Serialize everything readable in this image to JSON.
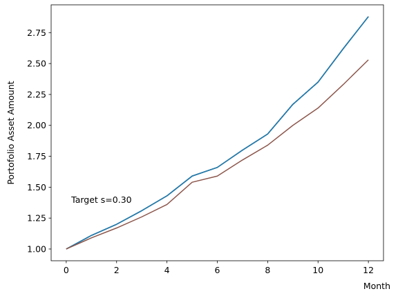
{
  "chart_data": {
    "type": "line",
    "title": "",
    "xlabel": "Month",
    "ylabel": "Portofolio Asset Amount",
    "xlim": [
      -0.6,
      12.6
    ],
    "ylim": [
      0.905,
      2.975
    ],
    "xticks": [
      0,
      2,
      4,
      6,
      8,
      10,
      12
    ],
    "xtick_labels": [
      "0",
      "2",
      "4",
      "6",
      "8",
      "10",
      "12"
    ],
    "yticks": [
      1.0,
      1.25,
      1.5,
      1.75,
      2.0,
      2.25,
      2.5,
      2.75
    ],
    "ytick_labels": [
      "1.00",
      "1.25",
      "1.50",
      "1.75",
      "2.00",
      "2.25",
      "2.50",
      "2.75"
    ],
    "grid": false,
    "annotation": {
      "text": "Target s=0.30",
      "x": 0.2,
      "y": 1.4
    },
    "x": [
      0,
      1,
      2,
      3,
      4,
      5,
      6,
      7,
      8,
      9,
      10,
      11,
      12
    ],
    "series": [
      {
        "color": "#ff7f0e",
        "values": [
          1.0,
          1.11,
          1.2,
          1.31,
          1.43,
          1.59,
          1.66,
          1.8,
          1.93,
          2.17,
          2.35,
          2.62,
          2.88
        ]
      },
      {
        "color": "#2ca02c",
        "values": [
          1.0,
          1.11,
          1.2,
          1.31,
          1.43,
          1.59,
          1.66,
          1.8,
          1.93,
          2.17,
          2.35,
          2.62,
          2.88
        ]
      },
      {
        "color": "#d62728",
        "values": [
          1.0,
          1.11,
          1.2,
          1.31,
          1.43,
          1.59,
          1.66,
          1.8,
          1.93,
          2.17,
          2.35,
          2.62,
          2.88
        ]
      },
      {
        "color": "#9467bd",
        "values": [
          1.0,
          1.11,
          1.2,
          1.31,
          1.43,
          1.59,
          1.66,
          1.8,
          1.93,
          2.17,
          2.35,
          2.62,
          2.88
        ]
      },
      {
        "color": "#e377c2",
        "values": [
          1.0,
          1.11,
          1.2,
          1.31,
          1.43,
          1.59,
          1.66,
          1.8,
          1.93,
          2.17,
          2.35,
          2.62,
          2.88
        ]
      },
      {
        "color": "#7f7f7f",
        "values": [
          1.0,
          1.11,
          1.2,
          1.31,
          1.43,
          1.59,
          1.66,
          1.8,
          1.93,
          2.17,
          2.35,
          2.62,
          2.88
        ]
      },
      {
        "color": "#bcbd22",
        "values": [
          1.0,
          1.11,
          1.2,
          1.31,
          1.43,
          1.59,
          1.66,
          1.8,
          1.93,
          2.17,
          2.35,
          2.62,
          2.88
        ]
      },
      {
        "color": "#17becf",
        "values": [
          1.0,
          1.11,
          1.2,
          1.31,
          1.43,
          1.59,
          1.66,
          1.8,
          1.93,
          2.17,
          2.35,
          2.62,
          2.88
        ]
      },
      {
        "color": "#1f77b4",
        "values": [
          1.0,
          1.11,
          1.2,
          1.31,
          1.43,
          1.59,
          1.66,
          1.8,
          1.93,
          2.17,
          2.35,
          2.62,
          2.88
        ]
      },
      {
        "color": "#8c564b",
        "values": [
          1.0,
          1.09,
          1.17,
          1.26,
          1.36,
          1.54,
          1.59,
          1.72,
          1.84,
          2.0,
          2.14,
          2.33,
          2.53
        ]
      }
    ]
  }
}
